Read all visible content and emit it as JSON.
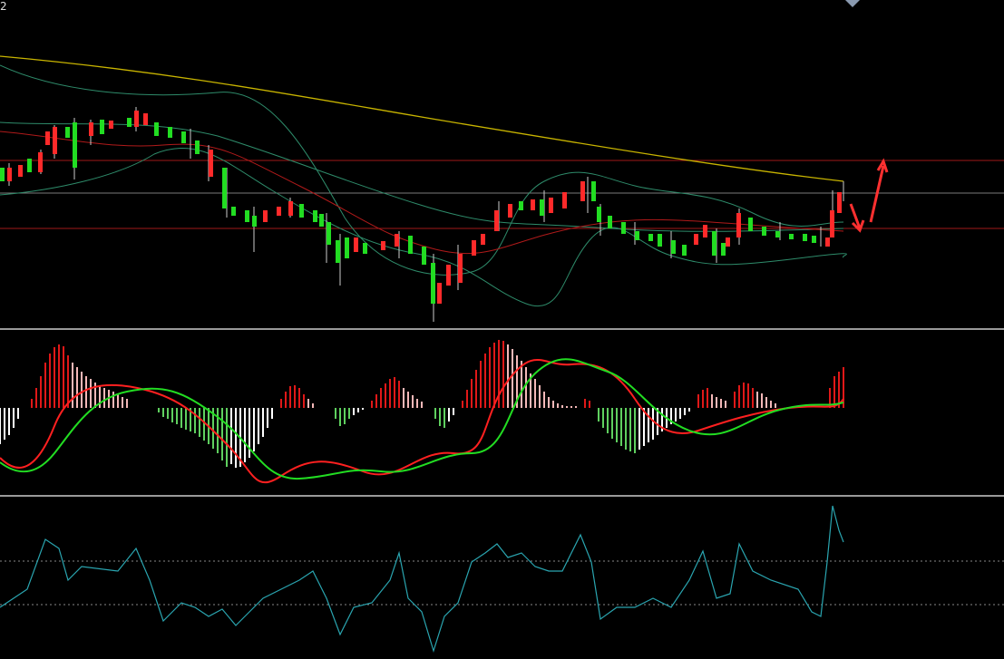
{
  "corner_label": "2"
}
